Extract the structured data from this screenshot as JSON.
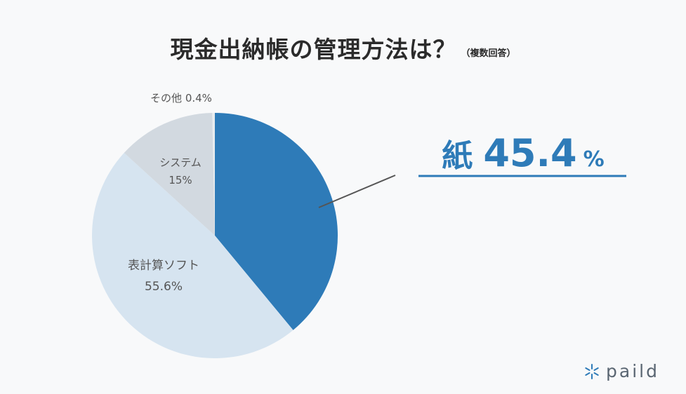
{
  "header": {
    "title": "現金出納帳の管理方法は？",
    "subtitle": "（複数回答）"
  },
  "chart_data": {
    "type": "pie",
    "slices": [
      {
        "label": "紙",
        "value": 45.4,
        "color": "#2e7bb8"
      },
      {
        "label": "表計算ソフト",
        "value": 55.6,
        "color": "#d6e4f0"
      },
      {
        "label": "システム",
        "value": 15,
        "color": "#d2d9e0"
      },
      {
        "label": "その他",
        "value": 0.4,
        "color": "#e8ecef"
      }
    ],
    "labels": {
      "other": "その他 0.4%",
      "system_name": "システム",
      "system_value": "15%",
      "spreadsheet_name": "表計算ソフト",
      "spreadsheet_value": "55.6%"
    },
    "callout": {
      "name": "紙",
      "number": "45.4",
      "unit": "%"
    }
  },
  "brand": {
    "name": "paild",
    "icon": "snowflake-icon",
    "color": "#2e7bb8"
  }
}
